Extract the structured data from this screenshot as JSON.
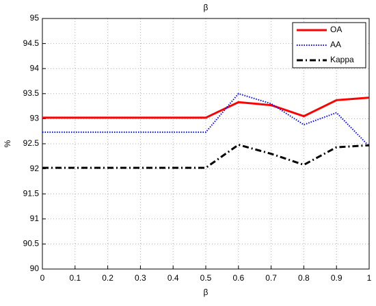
{
  "chart_data": {
    "type": "line",
    "title": "β",
    "xlabel": "β",
    "ylabel": "%",
    "x": [
      0,
      0.1,
      0.2,
      0.3,
      0.4,
      0.5,
      0.6,
      0.7,
      0.8,
      0.9,
      1
    ],
    "series": [
      {
        "name": "OA",
        "color": "#ff0000",
        "style": "solid",
        "values": [
          93.02,
          93.02,
          93.02,
          93.02,
          93.02,
          93.02,
          93.33,
          93.27,
          93.05,
          93.37,
          93.42
        ]
      },
      {
        "name": "AA",
        "color": "#0000ff",
        "style": "dotted",
        "values": [
          92.73,
          92.73,
          92.73,
          92.73,
          92.73,
          92.73,
          93.5,
          93.3,
          92.88,
          93.12,
          92.45
        ]
      },
      {
        "name": "Kappa",
        "color": "#000000",
        "style": "dashdot",
        "values": [
          92.02,
          92.02,
          92.02,
          92.02,
          92.02,
          92.02,
          92.48,
          92.3,
          92.08,
          92.43,
          92.47
        ]
      }
    ],
    "xlim": [
      0,
      1
    ],
    "xticks": [
      0,
      0.1,
      0.2,
      0.3,
      0.4,
      0.5,
      0.6,
      0.7,
      0.8,
      0.9,
      1
    ],
    "ylim": [
      90,
      95
    ],
    "yticks": [
      90,
      90.5,
      91,
      91.5,
      92,
      92.5,
      93,
      93.5,
      94,
      94.5,
      95
    ],
    "grid": true,
    "legend": "upper right"
  }
}
